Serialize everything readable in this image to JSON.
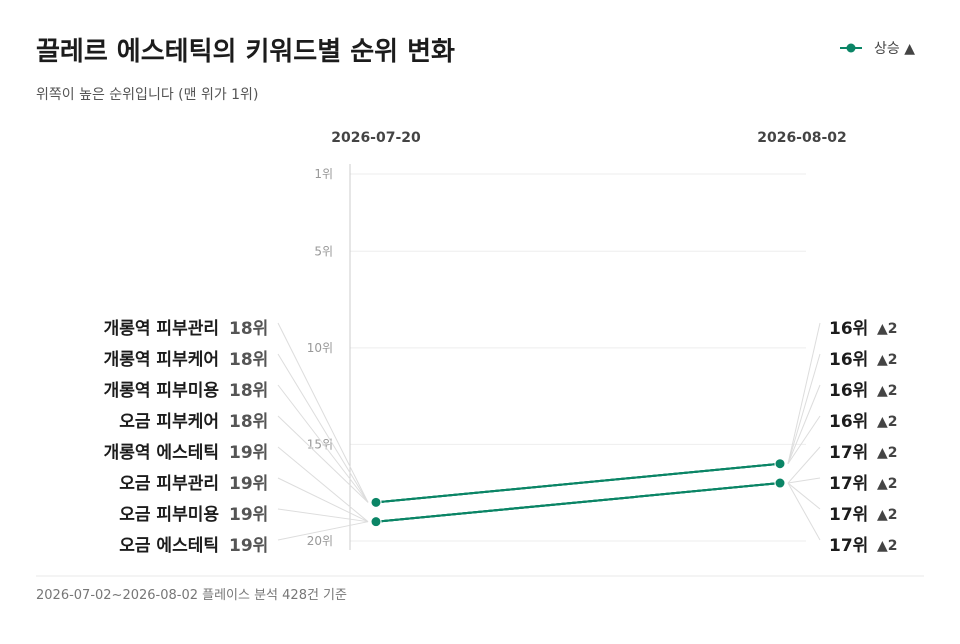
{
  "header": {
    "title": "끌레르 에스테틱의 키워드별 순위 변화",
    "subtitle": "위쪽이 높은 순위입니다 (맨 위가 1위)"
  },
  "legend": {
    "label": "상승 ▲",
    "color": "#0b8566"
  },
  "footer": {
    "text": "2026-07-02~2026-08-02 플레이스 분석 428건 기준"
  },
  "colors": {
    "line": "#0b8566",
    "grid": "#eeeeee",
    "axis": "#cccccc",
    "leader": "#dddddd",
    "up_arrow": "#555555"
  },
  "chart_data": {
    "type": "line",
    "title": "끌레르 에스테틱의 키워드별 순위 변화",
    "x": [
      "2026-07-20",
      "2026-08-02"
    ],
    "y_axis": {
      "inverted": true,
      "range": [
        1,
        20
      ],
      "ticks": [
        1,
        5,
        10,
        15,
        20
      ],
      "tick_suffix": "위"
    },
    "rank_suffix": "위",
    "series": [
      {
        "name": "개롱역 피부관리",
        "values": [
          18,
          16
        ],
        "change": "▲2"
      },
      {
        "name": "개롱역 피부케어",
        "values": [
          18,
          16
        ],
        "change": "▲2"
      },
      {
        "name": "개롱역 피부미용",
        "values": [
          18,
          16
        ],
        "change": "▲2"
      },
      {
        "name": "오금 피부케어",
        "values": [
          18,
          16
        ],
        "change": "▲2"
      },
      {
        "name": "개롱역 에스테틱",
        "values": [
          19,
          17
        ],
        "change": "▲2"
      },
      {
        "name": "오금 피부관리",
        "values": [
          19,
          17
        ],
        "change": "▲2"
      },
      {
        "name": "오금 피부미용",
        "values": [
          19,
          17
        ],
        "change": "▲2"
      },
      {
        "name": "오금 에스테틱",
        "values": [
          19,
          17
        ],
        "change": "▲2"
      }
    ]
  }
}
